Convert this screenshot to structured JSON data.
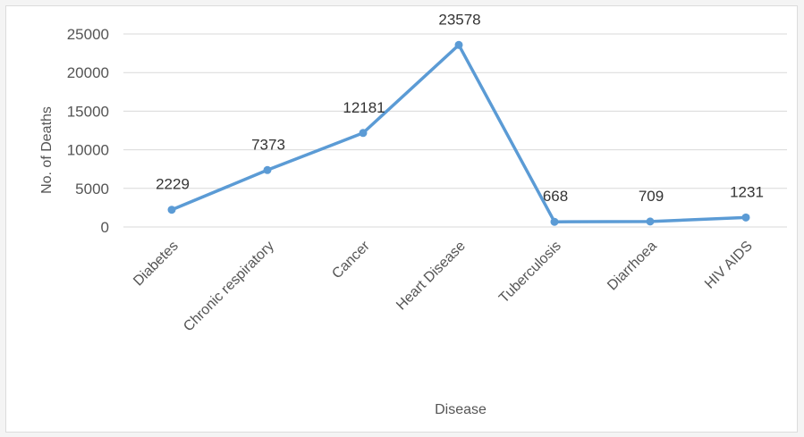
{
  "chart_data": {
    "type": "line",
    "title": "",
    "xlabel": "Disease",
    "ylabel": "No. of Deaths",
    "categories": [
      "Diabetes",
      "Chronic respiratory",
      "Cancer",
      "Heart Disease",
      "Tuberculosis",
      "Diarrhoea",
      "HIV AIDS"
    ],
    "series": [
      {
        "values": [
          2229,
          7373,
          12181,
          23578,
          668,
          709,
          1231
        ],
        "data_labels": [
          "2229",
          "7373",
          "12181",
          "23578",
          "668",
          "709",
          "1231"
        ]
      }
    ],
    "ylim": [
      0,
      25000
    ],
    "yticks": [
      "0",
      "5000",
      "10000",
      "15000",
      "20000",
      "25000"
    ],
    "grid": true,
    "legend": "none",
    "colors": {
      "line": "#5b9bd5",
      "grid": "#d9d9d9"
    }
  }
}
